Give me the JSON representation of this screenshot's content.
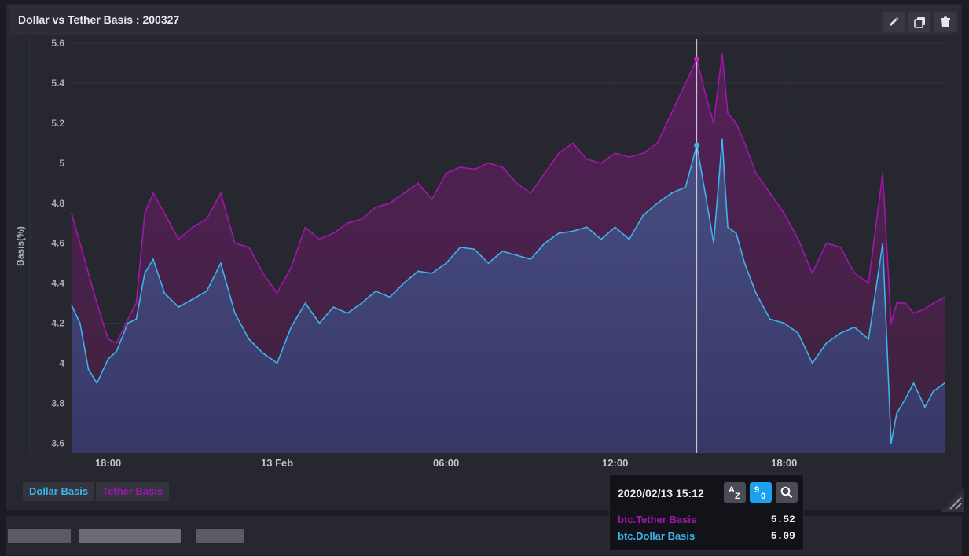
{
  "panel": {
    "title": "Dollar vs Tether Basis : 200327",
    "buttons": [
      {
        "name": "edit-button",
        "icon": "pencil-icon"
      },
      {
        "name": "duplicate-button",
        "icon": "copy-icon"
      },
      {
        "name": "delete-button",
        "icon": "trash-icon"
      }
    ]
  },
  "colors": {
    "dollar": "#3cb4ea",
    "tether": "#a216ad",
    "background": "#26272f",
    "header": "#2c2d36"
  },
  "chart_data": {
    "type": "area",
    "title": "",
    "ylabel": "Basis(%)",
    "xlabel": "",
    "ylim": [
      3.55,
      5.62
    ],
    "yticks": [
      3.6,
      3.8,
      4,
      4.2,
      4.4,
      4.6,
      4.8,
      5,
      5.2,
      5.4,
      5.6
    ],
    "ytick_labels": [
      "3.6",
      "3.8",
      "4",
      "4.2",
      "4.4",
      "4.6",
      "4.8",
      "5",
      "5.2",
      "5.4",
      "5.6"
    ],
    "xlim_hours": [
      16.7,
      47.7
    ],
    "x_tick_labels": [
      "18:00",
      "13 Feb",
      "06:00",
      "12:00",
      "18:00"
    ],
    "x_tick_hours": [
      18,
      24,
      30,
      36,
      42
    ],
    "x_hours": [
      16.7,
      17.0,
      17.3,
      17.6,
      18.0,
      18.3,
      18.7,
      19.0,
      19.3,
      19.6,
      20.0,
      20.5,
      21.0,
      21.5,
      22.0,
      22.5,
      23.0,
      23.5,
      24.0,
      24.5,
      25.0,
      25.5,
      26.0,
      26.5,
      27.0,
      27.5,
      28.0,
      28.5,
      29.0,
      29.5,
      30.0,
      30.5,
      31.0,
      31.5,
      32.0,
      32.5,
      33.0,
      33.5,
      34.0,
      34.5,
      35.0,
      35.5,
      36.0,
      36.5,
      37.0,
      37.5,
      38.0,
      38.5,
      38.9,
      39.2,
      39.5,
      39.8,
      40.0,
      40.3,
      40.6,
      41.0,
      41.5,
      42.0,
      42.5,
      43.0,
      43.5,
      44.0,
      44.5,
      45.0,
      45.5,
      45.8,
      46.0,
      46.3,
      46.6,
      47.0,
      47.3,
      47.7
    ],
    "series": [
      {
        "name": "Dollar Basis",
        "values": [
          4.29,
          4.2,
          3.97,
          3.9,
          4.02,
          4.06,
          4.2,
          4.22,
          4.45,
          4.52,
          4.35,
          4.28,
          4.32,
          4.36,
          4.5,
          4.25,
          4.12,
          4.05,
          4.0,
          4.18,
          4.3,
          4.2,
          4.28,
          4.25,
          4.3,
          4.36,
          4.33,
          4.4,
          4.46,
          4.45,
          4.5,
          4.58,
          4.57,
          4.5,
          4.56,
          4.54,
          4.52,
          4.6,
          4.65,
          4.66,
          4.68,
          4.62,
          4.68,
          4.62,
          4.74,
          4.8,
          4.85,
          4.88,
          5.09,
          4.85,
          4.6,
          5.12,
          4.68,
          4.65,
          4.5,
          4.35,
          4.22,
          4.2,
          4.15,
          4.0,
          4.1,
          4.15,
          4.18,
          4.12,
          4.6,
          3.6,
          3.75,
          3.82,
          3.9,
          3.78,
          3.86,
          3.9
        ]
      },
      {
        "name": "Tether Basis",
        "values": [
          4.75,
          4.6,
          4.45,
          4.3,
          4.12,
          4.1,
          4.22,
          4.3,
          4.75,
          4.85,
          4.75,
          4.62,
          4.68,
          4.72,
          4.85,
          4.6,
          4.58,
          4.45,
          4.35,
          4.48,
          4.68,
          4.62,
          4.65,
          4.7,
          4.72,
          4.78,
          4.8,
          4.85,
          4.9,
          4.82,
          4.95,
          4.98,
          4.97,
          5.0,
          4.98,
          4.9,
          4.85,
          4.95,
          5.05,
          5.1,
          5.02,
          5.0,
          5.05,
          5.03,
          5.05,
          5.1,
          5.25,
          5.4,
          5.52,
          5.35,
          5.2,
          5.55,
          5.25,
          5.2,
          5.1,
          4.95,
          4.85,
          4.75,
          4.62,
          4.45,
          4.6,
          4.58,
          4.45,
          4.4,
          4.95,
          4.2,
          4.3,
          4.3,
          4.25,
          4.27,
          4.3,
          4.33
        ]
      }
    ],
    "cursor_hour": 38.9,
    "markers": [
      {
        "series": "Tether Basis",
        "x_hour": 38.9,
        "y": 5.52
      },
      {
        "series": "Dollar Basis",
        "x_hour": 38.9,
        "y": 5.09
      }
    ],
    "grid": true,
    "legend": "bottom-left"
  },
  "legend": {
    "dollar_label": "Dollar Basis",
    "tether_label": "Tether Basis"
  },
  "tooltip": {
    "date": "2020/02/13 15:12",
    "sort_alpha_icon": "sort-alpha-icon",
    "sort_numeric_icon": "sort-numeric-icon",
    "search_icon": "search-icon",
    "rows": [
      {
        "label": "btc.Tether Basis",
        "value": "5.52",
        "color": "#a216ad"
      },
      {
        "label": "btc.Dollar Basis",
        "value": "5.09",
        "color": "#3cb4ea"
      }
    ]
  }
}
